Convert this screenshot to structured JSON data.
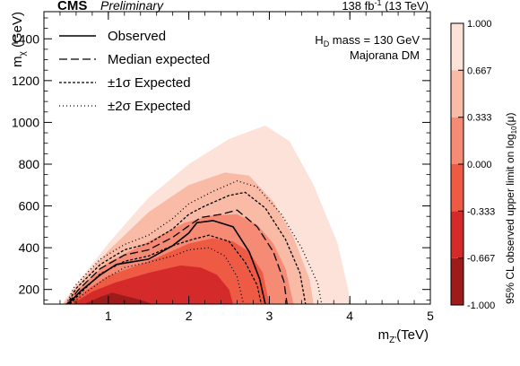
{
  "chart_data": {
    "type": "heatmap",
    "header": {
      "experiment": "CMS",
      "status": "Preliminary",
      "luminosity_prefix": "138 fb",
      "luminosity_exp": "-1",
      "luminosity_suffix": " (13 TeV)"
    },
    "annotation": {
      "line1_prefix": "H",
      "line1_sub": "D",
      "line1_suffix": " mass = 130 GeV",
      "line2": "Majorana DM"
    },
    "xlabel": {
      "prefix": "m",
      "sub": "Z'",
      "suffix": "(TeV)"
    },
    "ylabel": {
      "prefix": "m",
      "sub": "χ",
      "suffix": " (GeV)"
    },
    "zlabel": {
      "prefix": "95% CL observed upper limit on log",
      "sub": "10",
      "suffix": "(μ)"
    },
    "xlim": [
      0.2,
      5.0
    ],
    "ylim": [
      130,
      1530
    ],
    "xticks": [
      {
        "value": 1,
        "label": "1"
      },
      {
        "value": 2,
        "label": "2"
      },
      {
        "value": 3,
        "label": "3"
      },
      {
        "value": 4,
        "label": "4"
      },
      {
        "value": 5,
        "label": "5"
      }
    ],
    "yticks": [
      {
        "value": 200,
        "label": "200"
      },
      {
        "value": 400,
        "label": "400"
      },
      {
        "value": 600,
        "label": "600"
      },
      {
        "value": 800,
        "label": "800"
      },
      {
        "value": 1000,
        "label": "1000"
      },
      {
        "value": 1200,
        "label": "1200"
      },
      {
        "value": 1400,
        "label": "1400"
      }
    ],
    "zlim": [
      -1.0,
      1.0
    ],
    "colorbar": {
      "boundaries": [
        "-1.000",
        "-0.667",
        "-0.333",
        "0.000",
        "0.333",
        "0.667",
        "1.000"
      ],
      "colors": [
        "#9e1b1b",
        "#d42a2a",
        "#ef5a44",
        "#f58b75",
        "#f9baa6",
        "#fce2d8"
      ]
    },
    "regions": [
      {
        "level": 0.667,
        "color": "#fce2d8",
        "points": [
          [
            0.42,
            130
          ],
          [
            0.6,
            225
          ],
          [
            1.0,
            420
          ],
          [
            1.5,
            640
          ],
          [
            2.0,
            800
          ],
          [
            2.5,
            920
          ],
          [
            2.95,
            985
          ],
          [
            3.25,
            910
          ],
          [
            3.55,
            700
          ],
          [
            3.85,
            420
          ],
          [
            3.98,
            200
          ],
          [
            4.0,
            130
          ]
        ]
      },
      {
        "level": 0.333,
        "color": "#f9baa6",
        "points": [
          [
            0.44,
            130
          ],
          [
            0.6,
            215
          ],
          [
            1.0,
            385
          ],
          [
            1.5,
            570
          ],
          [
            2.0,
            700
          ],
          [
            2.45,
            760
          ],
          [
            2.75,
            745
          ],
          [
            3.05,
            620
          ],
          [
            3.3,
            450
          ],
          [
            3.5,
            250
          ],
          [
            3.55,
            130
          ]
        ]
      },
      {
        "level": 0.0,
        "color": "#f58b75",
        "points": [
          [
            0.46,
            130
          ],
          [
            0.6,
            195
          ],
          [
            1.0,
            330
          ],
          [
            1.5,
            430
          ],
          [
            1.95,
            520
          ],
          [
            2.3,
            555
          ],
          [
            2.6,
            560
          ],
          [
            2.85,
            510
          ],
          [
            3.05,
            420
          ],
          [
            3.2,
            300
          ],
          [
            3.3,
            130
          ]
        ]
      },
      {
        "level": -0.333,
        "color": "#ef5a44",
        "points": [
          [
            0.48,
            130
          ],
          [
            0.7,
            190
          ],
          [
            1.0,
            265
          ],
          [
            1.5,
            335
          ],
          [
            2.0,
            420
          ],
          [
            2.3,
            445
          ],
          [
            2.55,
            430
          ],
          [
            2.75,
            380
          ],
          [
            2.92,
            280
          ],
          [
            3.0,
            130
          ]
        ]
      },
      {
        "level": -0.667,
        "color": "#d42a2a",
        "points": [
          [
            0.55,
            130
          ],
          [
            0.8,
            190
          ],
          [
            1.1,
            235
          ],
          [
            1.5,
            280
          ],
          [
            1.9,
            315
          ],
          [
            2.15,
            305
          ],
          [
            2.35,
            270
          ],
          [
            2.5,
            200
          ],
          [
            2.55,
            130
          ]
        ]
      },
      {
        "level": -1.0,
        "color": "#9e1b1b",
        "points": [
          [
            0.7,
            130
          ],
          [
            0.9,
            165
          ],
          [
            1.05,
            185
          ],
          [
            1.2,
            170
          ],
          [
            1.4,
            150
          ],
          [
            1.55,
            130
          ]
        ]
      }
    ],
    "legend": {
      "placement": "top-left",
      "entries": [
        {
          "label": "Observed",
          "style": "solid"
        },
        {
          "label": "Median expected",
          "style": "dashed"
        },
        {
          "label": "±1σ Expected",
          "style": "short-dashed"
        },
        {
          "label": "±2σ Expected",
          "style": "dotted"
        }
      ]
    },
    "series": [
      {
        "name": "Observed",
        "style": "solid",
        "points": [
          [
            0.5,
            130
          ],
          [
            0.65,
            190
          ],
          [
            0.9,
            270
          ],
          [
            1.1,
            320
          ],
          [
            1.5,
            345
          ],
          [
            1.8,
            410
          ],
          [
            2.0,
            470
          ],
          [
            2.1,
            520
          ],
          [
            2.3,
            530
          ],
          [
            2.55,
            500
          ],
          [
            2.75,
            380
          ],
          [
            2.88,
            250
          ],
          [
            2.95,
            130
          ]
        ]
      },
      {
        "name": "Median expected",
        "style": "dashed",
        "points": [
          [
            0.5,
            130
          ],
          [
            0.62,
            195
          ],
          [
            0.9,
            300
          ],
          [
            1.2,
            365
          ],
          [
            1.5,
            390
          ],
          [
            1.8,
            450
          ],
          [
            2.0,
            505
          ],
          [
            2.15,
            545
          ],
          [
            2.4,
            560
          ],
          [
            2.6,
            580
          ],
          [
            2.85,
            500
          ],
          [
            3.05,
            380
          ],
          [
            3.18,
            240
          ],
          [
            3.22,
            130
          ]
        ]
      },
      {
        "name": "±1σ Expected (upper)",
        "style": "short-dashed",
        "points": [
          [
            0.49,
            130
          ],
          [
            0.6,
            205
          ],
          [
            0.9,
            320
          ],
          [
            1.2,
            390
          ],
          [
            1.5,
            420
          ],
          [
            1.8,
            490
          ],
          [
            2.0,
            560
          ],
          [
            2.2,
            600
          ],
          [
            2.5,
            650
          ],
          [
            2.7,
            665
          ],
          [
            2.95,
            590
          ],
          [
            3.2,
            440
          ],
          [
            3.38,
            280
          ],
          [
            3.45,
            130
          ]
        ]
      },
      {
        "name": "±1σ Expected (lower)",
        "style": "short-dashed",
        "points": [
          [
            0.52,
            130
          ],
          [
            0.66,
            185
          ],
          [
            0.9,
            275
          ],
          [
            1.2,
            335
          ],
          [
            1.5,
            360
          ],
          [
            1.8,
            410
          ],
          [
            2.05,
            440
          ],
          [
            2.25,
            460
          ],
          [
            2.5,
            430
          ],
          [
            2.7,
            330
          ],
          [
            2.85,
            220
          ],
          [
            2.9,
            130
          ]
        ]
      },
      {
        "name": "±2σ Expected (upper)",
        "style": "dotted",
        "points": [
          [
            0.48,
            130
          ],
          [
            0.58,
            215
          ],
          [
            0.9,
            345
          ],
          [
            1.2,
            415
          ],
          [
            1.5,
            460
          ],
          [
            1.8,
            540
          ],
          [
            2.0,
            610
          ],
          [
            2.3,
            670
          ],
          [
            2.6,
            720
          ],
          [
            2.85,
            690
          ],
          [
            3.15,
            560
          ],
          [
            3.4,
            400
          ],
          [
            3.6,
            230
          ],
          [
            3.65,
            130
          ]
        ]
      },
      {
        "name": "±2σ Expected (lower)",
        "style": "dotted",
        "points": [
          [
            0.54,
            130
          ],
          [
            0.7,
            180
          ],
          [
            0.95,
            250
          ],
          [
            1.2,
            305
          ],
          [
            1.5,
            330
          ],
          [
            1.8,
            360
          ],
          [
            2.0,
            390
          ],
          [
            2.25,
            400
          ],
          [
            2.45,
            360
          ],
          [
            2.6,
            260
          ],
          [
            2.68,
            130
          ]
        ]
      }
    ]
  }
}
